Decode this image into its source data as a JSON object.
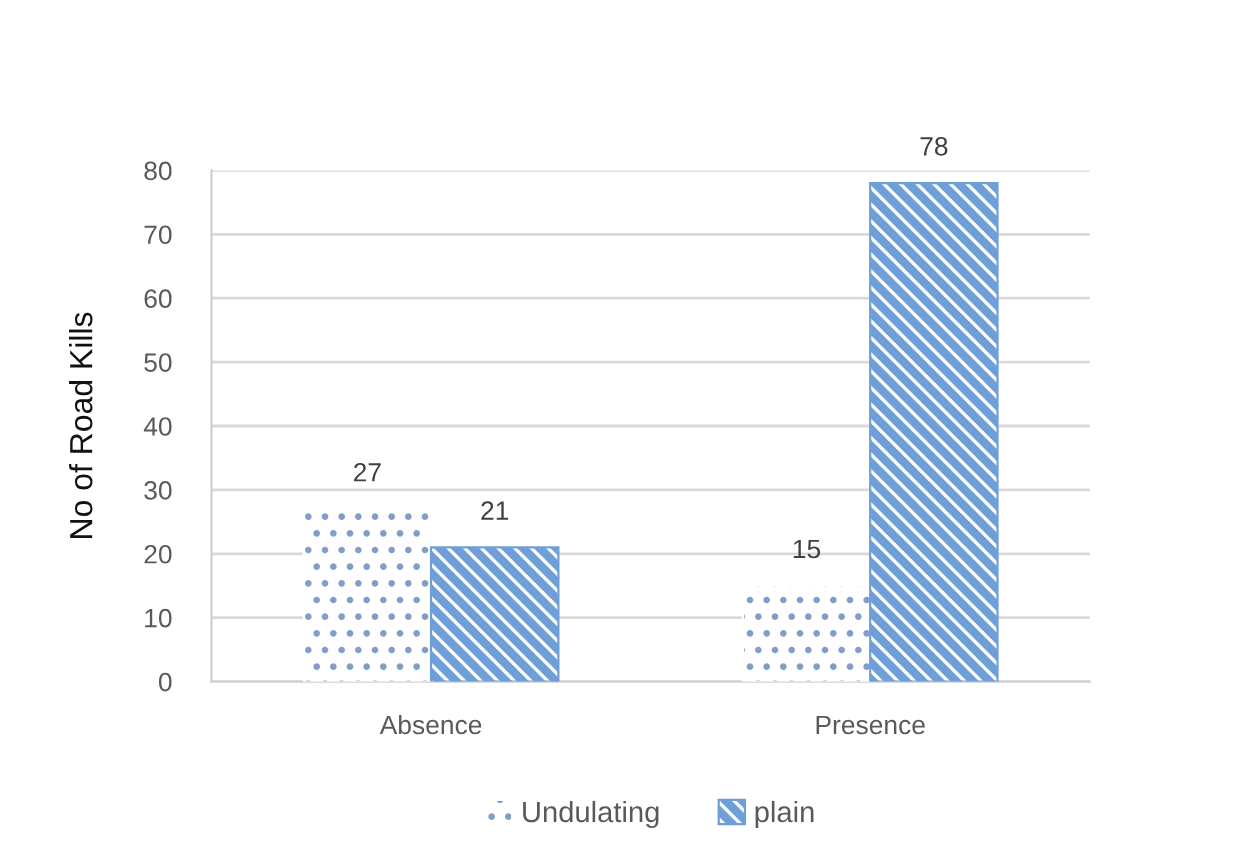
{
  "chart_data": {
    "type": "bar",
    "ylabel": "No of Road Kills",
    "categories": [
      "Absence",
      "Presence"
    ],
    "series": [
      {
        "name": "Undulating",
        "color": "#ffffff",
        "values": [
          27,
          15
        ]
      },
      {
        "name": "plain",
        "color": "#6f9fd8",
        "values": [
          21,
          78
        ]
      }
    ],
    "ylim": [
      0,
      80
    ],
    "yticks": [
      0,
      10,
      20,
      30,
      40,
      50,
      60,
      70,
      80
    ],
    "grid": "y",
    "legend": "bottom",
    "data_labels": true
  }
}
